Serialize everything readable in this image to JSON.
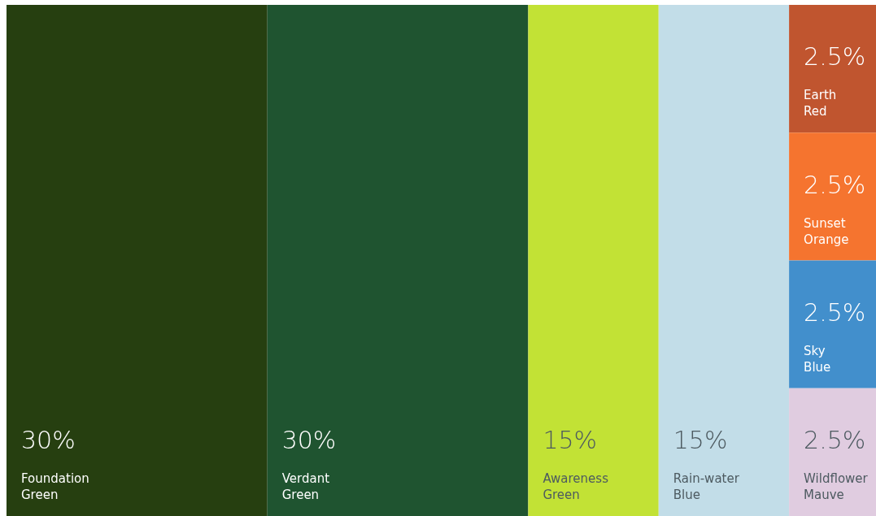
{
  "chart_data": {
    "type": "other",
    "categories": [
      "Foundation Green",
      "Verdant Green",
      "Awareness Green",
      "Rain-water Blue",
      "Earth Red",
      "Sunset Orange",
      "Sky Blue",
      "Wildflower Mauve"
    ],
    "values": [
      30,
      30,
      15,
      15,
      2.5,
      2.5,
      2.5,
      2.5
    ],
    "value_labels": [
      "30%",
      "30%",
      "15%",
      "15%",
      "2.5%",
      "2.5%",
      "2.5%",
      "2.5%"
    ],
    "colors": [
      "#263f10",
      "#1f5430",
      "#c2e235",
      "#c2dde8",
      "#c0552f",
      "#f5742f",
      "#428fcc",
      "#e0cce0"
    ]
  }
}
